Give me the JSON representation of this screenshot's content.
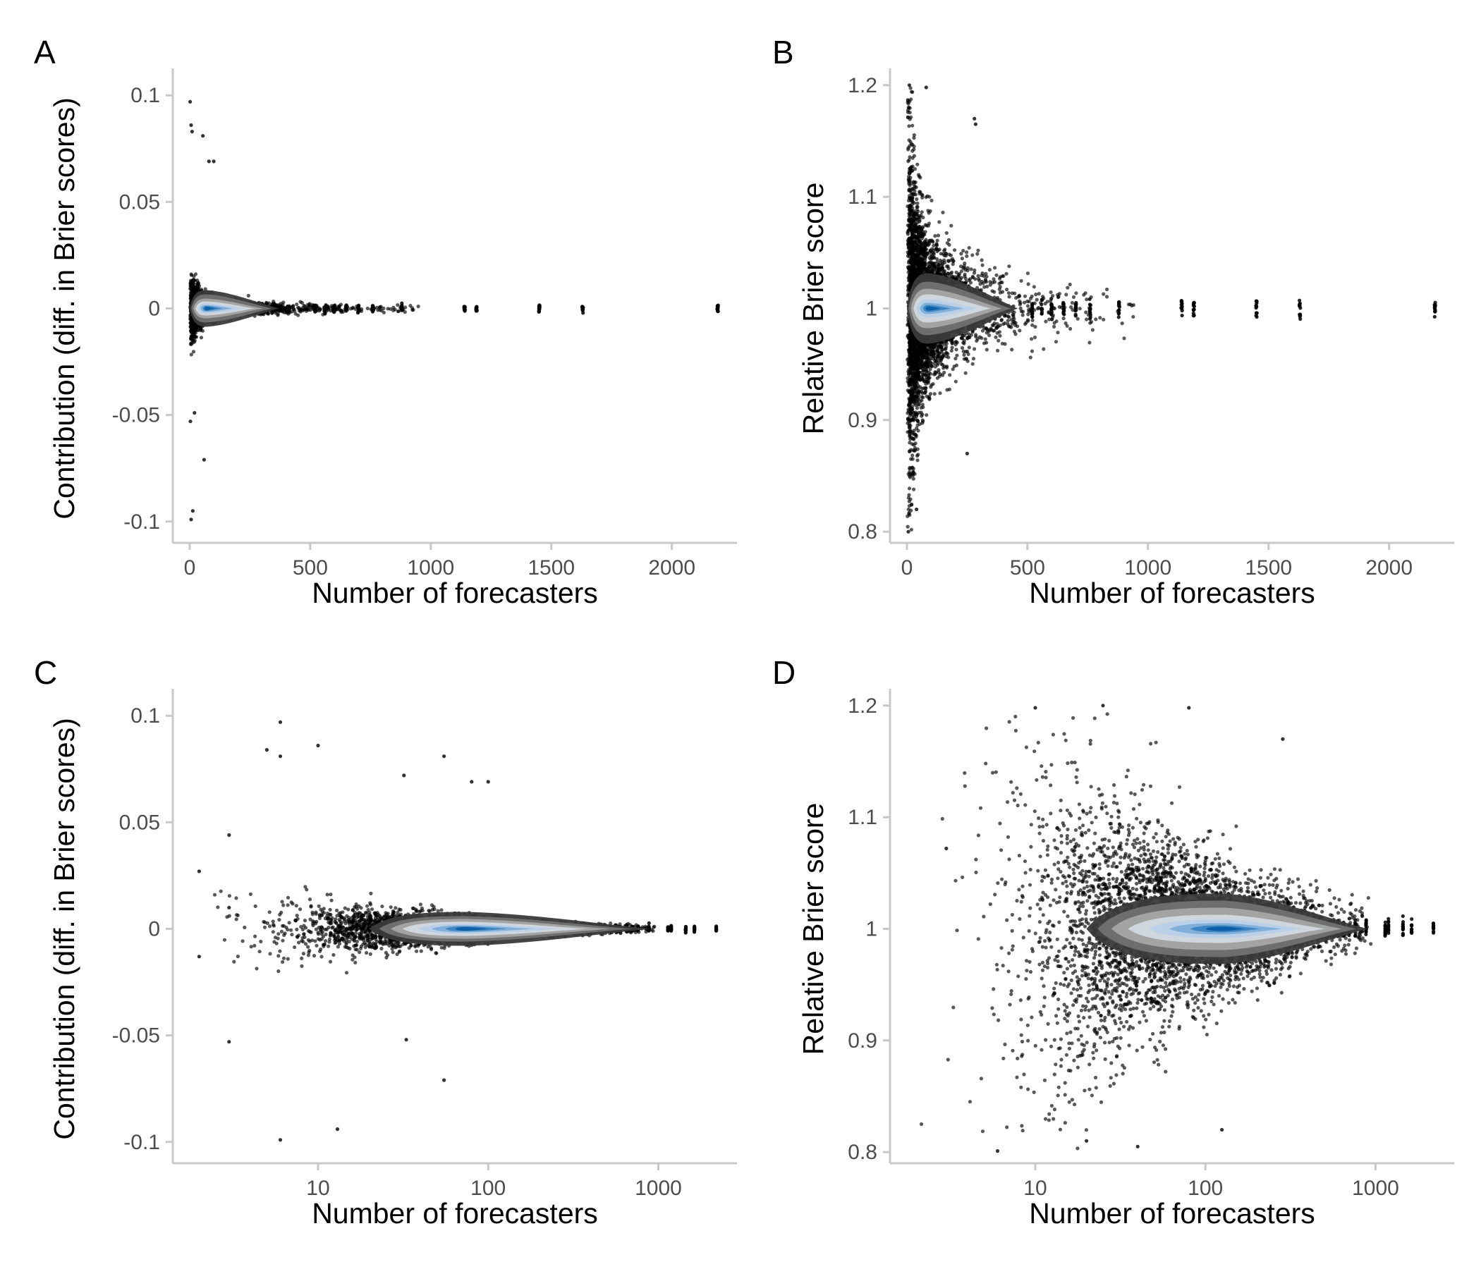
{
  "figure": {
    "background": "#ffffff",
    "point_color": "#000000",
    "density_colors": [
      "#3a3a3a",
      "#6e6e6e",
      "#a3a3a3",
      "#d0d6de",
      "#b9d0e8",
      "#82afd8",
      "#3d84c2",
      "#0d5fa8"
    ]
  },
  "chart_data": [
    {
      "panel": "A",
      "type": "scatter",
      "xscale": "linear",
      "xlabel": "Number of forecasters",
      "ylabel": "Contribution (diff. in Brier scores)",
      "xlim": [
        -70,
        2270
      ],
      "ylim": [
        -0.11,
        0.11
      ],
      "xticks": [
        0,
        500,
        1000,
        1500,
        2000
      ],
      "xtick_labels": [
        "0",
        "500",
        "1000",
        "1500",
        "2000"
      ],
      "yticks": [
        -0.1,
        -0.05,
        0,
        0.05,
        0.1
      ],
      "ytick_labels": [
        "-0.1",
        "-0.05",
        "0",
        "0.05",
        "0.1"
      ],
      "center": 0,
      "density_peak_x": 70,
      "description_series": "individual forecaster contributions with 2D density overlay",
      "notable_points": [
        [
          2,
          0.097
        ],
        [
          6,
          0.086
        ],
        [
          10,
          0.083
        ],
        [
          55,
          0.081
        ],
        [
          80,
          0.069
        ],
        [
          100,
          0.069
        ],
        [
          6,
          -0.099
        ],
        [
          3,
          -0.053
        ],
        [
          20,
          -0.049
        ],
        [
          60,
          -0.071
        ],
        [
          13,
          -0.095
        ]
      ]
    },
    {
      "panel": "B",
      "type": "scatter",
      "xscale": "linear",
      "xlabel": "Number of forecasters",
      "ylabel": "Relative Brier score",
      "xlim": [
        -70,
        2270
      ],
      "ylim": [
        0.79,
        1.21
      ],
      "xticks": [
        0,
        500,
        1000,
        1500,
        2000
      ],
      "xtick_labels": [
        "0",
        "500",
        "1000",
        "1500",
        "2000"
      ],
      "yticks": [
        0.8,
        0.9,
        1.0,
        1.1,
        1.2
      ],
      "ytick_labels": [
        "0.8",
        "0.9",
        "1",
        "1.1",
        "1.2"
      ],
      "center": 1,
      "density_peak_x": 90,
      "notable_points": [
        [
          10,
          1.2
        ],
        [
          80,
          1.198
        ],
        [
          280,
          1.17
        ],
        [
          285,
          1.165
        ],
        [
          6,
          0.8
        ],
        [
          40,
          0.82
        ],
        [
          250,
          0.87
        ]
      ]
    },
    {
      "panel": "C",
      "type": "scatter",
      "xscale": "log",
      "xlabel": "Number of forecasters",
      "ylabel": "Contribution (diff. in Brier scores)",
      "xlim": [
        1.4,
        2900
      ],
      "ylim": [
        -0.11,
        0.11
      ],
      "xticks": [
        10,
        100,
        1000
      ],
      "xtick_labels": [
        "10",
        "100",
        "1000"
      ],
      "yticks": [
        -0.1,
        -0.05,
        0,
        0.05,
        0.1
      ],
      "ytick_labels": [
        "-0.1",
        "-0.05",
        "0",
        "0.05",
        "0.1"
      ],
      "center": 0,
      "density_peak_x": 75,
      "notable_points": [
        [
          2,
          0.027
        ],
        [
          2,
          -0.013
        ],
        [
          3,
          0.044
        ],
        [
          3,
          0.01
        ],
        [
          3,
          -0.053
        ],
        [
          5,
          0.084
        ],
        [
          6,
          0.097
        ],
        [
          6,
          0.081
        ],
        [
          6,
          -0.099
        ],
        [
          10,
          0.086
        ],
        [
          32,
          0.072
        ],
        [
          55,
          0.081
        ],
        [
          80,
          0.069
        ],
        [
          100,
          0.069
        ],
        [
          55,
          -0.071
        ],
        [
          13,
          -0.094
        ],
        [
          33,
          -0.052
        ]
      ]
    },
    {
      "panel": "D",
      "type": "scatter",
      "xscale": "log",
      "xlabel": "Number of forecasters",
      "ylabel": "Relative Brier score",
      "xlim": [
        1.4,
        2900
      ],
      "ylim": [
        0.79,
        1.21
      ],
      "xticks": [
        10,
        100,
        1000
      ],
      "xtick_labels": [
        "10",
        "100",
        "1000"
      ],
      "yticks": [
        0.8,
        0.9,
        1.0,
        1.1,
        1.2
      ],
      "ytick_labels": [
        "0.8",
        "0.9",
        "1",
        "1.1",
        "1.2"
      ],
      "center": 1,
      "density_peak_x": 130,
      "notable_points": [
        [
          3,
          1.072
        ],
        [
          10,
          1.198
        ],
        [
          25,
          1.2
        ],
        [
          80,
          1.198
        ],
        [
          285,
          1.17
        ],
        [
          6,
          0.801
        ],
        [
          20,
          0.81
        ],
        [
          40,
          0.805
        ],
        [
          125,
          0.82
        ]
      ]
    }
  ]
}
